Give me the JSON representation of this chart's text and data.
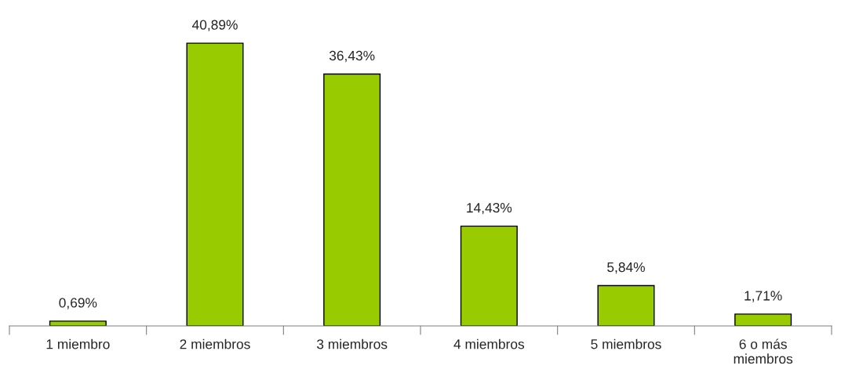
{
  "chart_data": {
    "type": "bar",
    "categories": [
      "1 miembro",
      "2 miembros",
      "3 miembros",
      "4 miembros",
      "5 miembros",
      "6 o más\nmiembros"
    ],
    "values": [
      0.69,
      40.89,
      36.43,
      14.43,
      5.84,
      1.71
    ],
    "value_labels": [
      "0,69%",
      "40,89%",
      "36,43%",
      "14,43%",
      "5,84%",
      "1,71%"
    ],
    "color": "#99cc00"
  }
}
